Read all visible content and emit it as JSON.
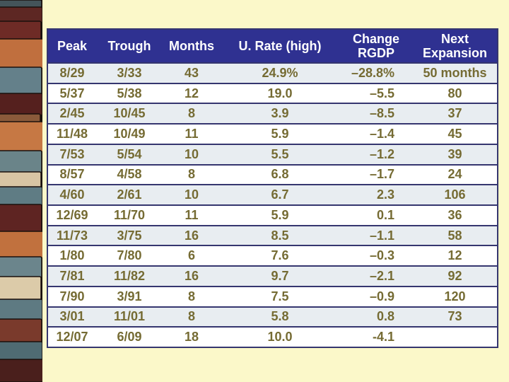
{
  "slide": {
    "background_color": "#FBF8C9",
    "description": "Recession history table slide with stacked-stone wall photo strip on the left"
  },
  "decor": {
    "left_texture": "stacked-stone-wall-photo",
    "stone_palette": [
      "#5D2723",
      "#6E2B26",
      "#C06F3E",
      "#C67844",
      "#64808A",
      "#6A8489",
      "#5F7C84",
      "#D8C5A4",
      "#DCCBA9",
      "#5E2422",
      "#6B858C",
      "#5E7A82",
      "#7A3A2C",
      "#4F6B73",
      "#4A1F1C",
      "#44545A",
      "#1A110D"
    ]
  },
  "table": {
    "style": {
      "header_bg": "#2F3191",
      "header_text_color": "#FFFFFF",
      "border_color": "#35366F",
      "row_bg": "#FFFFFF",
      "row_alt_bg": "#E8EDF1",
      "cell_text_color": "#756B33"
    },
    "columns": [
      {
        "id": "peak",
        "label": "Peak"
      },
      {
        "id": "trough",
        "label": "Trough"
      },
      {
        "id": "months",
        "label": "Months"
      },
      {
        "id": "urate",
        "label": "U. Rate (high)"
      },
      {
        "id": "rgdp",
        "label": "Change RGDP"
      },
      {
        "id": "next",
        "label": "Next Expansion"
      }
    ],
    "rows": [
      [
        "8/29",
        "3/33",
        "43",
        "24.9%",
        "–28.8%",
        "50 months"
      ],
      [
        "5/37",
        "5/38",
        "12",
        "19.0",
        "–5.5",
        "80"
      ],
      [
        "2/45",
        "10/45",
        "8",
        "3.9",
        "–8.5",
        "37"
      ],
      [
        "11/48",
        "10/49",
        "11",
        "5.9",
        "–1.4",
        "45"
      ],
      [
        "7/53",
        "5/54",
        "10",
        "5.5",
        "–1.2",
        "39"
      ],
      [
        "8/57",
        "4/58",
        "8",
        "6.8",
        "–1.7",
        "24"
      ],
      [
        "4/60",
        "2/61",
        "10",
        "6.7",
        "2.3",
        "106"
      ],
      [
        "12/69",
        "11/70",
        "11",
        "5.9",
        "0.1",
        "36"
      ],
      [
        "11/73",
        "3/75",
        "16",
        "8.5",
        "–1.1",
        "58"
      ],
      [
        "1/80",
        "7/80",
        "6",
        "7.6",
        "–0.3",
        "12"
      ],
      [
        "7/81",
        "11/82",
        "16",
        "9.7",
        "–2.1",
        "92"
      ],
      [
        "7/90",
        "3/91",
        "8",
        "7.5",
        "–0.9",
        "120"
      ],
      [
        "3/01",
        "11/01",
        "8",
        "5.8",
        "0.8",
        "73"
      ],
      [
        "12/07",
        "6/09",
        "18",
        "10.0",
        "-4.1",
        ""
      ]
    ]
  }
}
